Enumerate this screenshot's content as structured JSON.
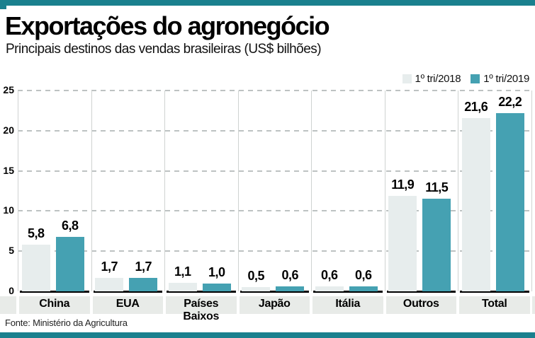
{
  "header": {
    "title": "Exportações do agronegócio",
    "subtitle": "Principais destinos das vendas brasileiras (US$ bilhões)"
  },
  "legend": [
    {
      "label": "1º tri/2018",
      "color": "#e7eded"
    },
    {
      "label": "1º tri/2019",
      "color": "#45a1b2"
    }
  ],
  "chart_data": {
    "type": "bar",
    "title": "Exportações do agronegócio",
    "subtitle": "Principais destinos das vendas brasileiras (US$ bilhões)",
    "categories": [
      "China",
      "EUA",
      "Países Baixos",
      "Japão",
      "Itália",
      "Outros",
      "Total"
    ],
    "series": [
      {
        "name": "1º tri/2018",
        "color": "#e7eded",
        "values": [
          5.8,
          1.7,
          1.1,
          0.5,
          0.6,
          11.9,
          21.6
        ]
      },
      {
        "name": "1º tri/2019",
        "color": "#45a1b2",
        "values": [
          6.8,
          1.7,
          1.0,
          0.6,
          0.6,
          11.5,
          22.2
        ]
      }
    ],
    "value_labels": [
      [
        "5,8",
        "1,7",
        "1,1",
        "0,5",
        "0,6",
        "11,9",
        "21,6"
      ],
      [
        "6,8",
        "1,7",
        "1,0",
        "0,6",
        "0,6",
        "11,5",
        "22,2"
      ]
    ],
    "ylim": [
      0,
      25
    ],
    "yticks": [
      0,
      5,
      10,
      15,
      20,
      25
    ],
    "grid": "horizontal-dashed",
    "legend_position": "top-right"
  },
  "footer": {
    "source": "Fonte: Ministério da Agricultura"
  },
  "colors": {
    "accent_teal": "#45a1b2",
    "strip_teal": "#1a808e",
    "light_series": "#e7eded",
    "label_band": "#e8ebe8",
    "gridline": "#bdc2c2",
    "separator": "#cfd3d1"
  }
}
